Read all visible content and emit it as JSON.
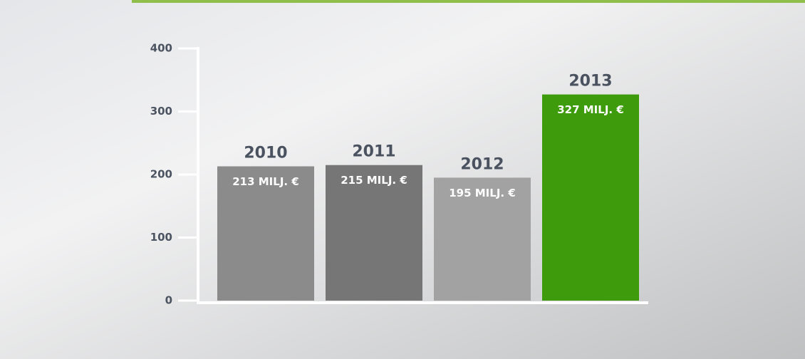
{
  "chart_data": {
    "type": "bar",
    "categories": [
      "2010",
      "2011",
      "2012",
      "2013"
    ],
    "values": [
      213,
      215,
      195,
      327
    ],
    "value_labels": [
      "213 MILJ. €",
      "215 MILJ. €",
      "195 MILJ. €",
      "327 MILJ. €"
    ],
    "colors": [
      "#8b8b8b",
      "#767676",
      "#a2a2a2",
      "#3d9b0c"
    ],
    "ylim": [
      0,
      400
    ],
    "yticks": [
      0,
      100,
      200,
      300,
      400
    ]
  }
}
